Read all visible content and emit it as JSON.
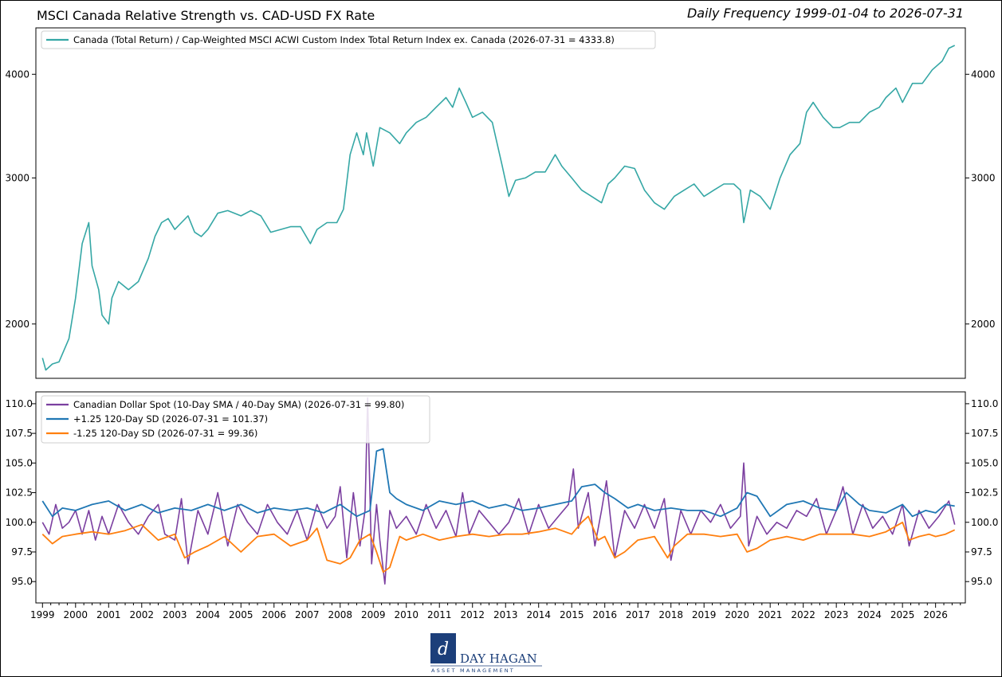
{
  "chart_data": [
    {
      "type": "line",
      "title": "MSCI Canada Relative Strength vs. CAD-USD FX Rate",
      "subtitle": "Daily Frequency 1999-01-04 to 2026-07-31",
      "y_scale": "log",
      "ylim": [
        1720,
        4550
      ],
      "yticks": [
        2000,
        3000,
        4000
      ],
      "grid": false,
      "legend_position": "top-left",
      "series": [
        {
          "name": "Canada (Total Return) / Cap-Weighted MSCI ACWI Custom Index Total Return Index ex. Canada (2026-07-31 = 4333.8)",
          "color": "#35a7a5",
          "x": [
            1999.0,
            1999.1,
            1999.3,
            1999.5,
            1999.8,
            2000.0,
            2000.2,
            2000.4,
            2000.5,
            2000.7,
            2000.8,
            2001.0,
            2001.1,
            2001.3,
            2001.6,
            2001.9,
            2002.2,
            2002.4,
            2002.6,
            2002.8,
            2003.0,
            2003.2,
            2003.4,
            2003.6,
            2003.8,
            2004.0,
            2004.3,
            2004.6,
            2005.0,
            2005.3,
            2005.6,
            2005.9,
            2006.2,
            2006.5,
            2006.8,
            2007.1,
            2007.3,
            2007.6,
            2007.9,
            2008.1,
            2008.3,
            2008.5,
            2008.7,
            2008.8,
            2009.0,
            2009.2,
            2009.5,
            2009.8,
            2010.0,
            2010.3,
            2010.6,
            2010.9,
            2011.2,
            2011.4,
            2011.6,
            2011.8,
            2012.0,
            2012.3,
            2012.6,
            2012.9,
            2013.1,
            2013.3,
            2013.6,
            2013.9,
            2014.2,
            2014.5,
            2014.7,
            2015.0,
            2015.3,
            2015.6,
            2015.9,
            2016.1,
            2016.3,
            2016.6,
            2016.9,
            2017.2,
            2017.5,
            2017.8,
            2018.1,
            2018.4,
            2018.7,
            2019.0,
            2019.3,
            2019.6,
            2019.9,
            2020.1,
            2020.2,
            2020.4,
            2020.7,
            2021.0,
            2021.3,
            2021.6,
            2021.9,
            2022.1,
            2022.3,
            2022.6,
            2022.9,
            2023.1,
            2023.4,
            2023.7,
            2024.0,
            2024.3,
            2024.5,
            2024.8,
            2025.0,
            2025.3,
            2025.6,
            2025.9,
            2026.2,
            2026.4,
            2026.58
          ],
          "values": [
            1820,
            1760,
            1790,
            1800,
            1920,
            2150,
            2500,
            2650,
            2350,
            2200,
            2050,
            2000,
            2150,
            2250,
            2200,
            2250,
            2400,
            2550,
            2650,
            2680,
            2600,
            2650,
            2700,
            2580,
            2550,
            2600,
            2720,
            2740,
            2700,
            2740,
            2700,
            2580,
            2600,
            2620,
            2620,
            2500,
            2600,
            2650,
            2650,
            2750,
            3200,
            3400,
            3200,
            3400,
            3100,
            3450,
            3400,
            3300,
            3400,
            3500,
            3550,
            3650,
            3750,
            3650,
            3850,
            3700,
            3550,
            3600,
            3500,
            3100,
            2850,
            2980,
            3000,
            3050,
            3050,
            3200,
            3100,
            3000,
            2900,
            2850,
            2800,
            2950,
            3000,
            3100,
            3080,
            2900,
            2800,
            2750,
            2850,
            2900,
            2950,
            2850,
            2900,
            2950,
            2950,
            2900,
            2650,
            2900,
            2850,
            2750,
            3000,
            3200,
            3300,
            3600,
            3700,
            3550,
            3450,
            3450,
            3500,
            3500,
            3600,
            3650,
            3750,
            3850,
            3700,
            3900,
            3900,
            4050,
            4150,
            4300,
            4333.8
          ]
        }
      ]
    },
    {
      "type": "line",
      "ylim": [
        93.2,
        111.0
      ],
      "yticks": [
        95.0,
        97.5,
        100.0,
        102.5,
        105.0,
        107.5,
        110.0
      ],
      "grid": false,
      "legend_position": "top-left",
      "xlim": [
        1998.8,
        2026.9
      ],
      "xticks": [
        1999,
        2000,
        2001,
        2002,
        2003,
        2004,
        2005,
        2006,
        2007,
        2008,
        2009,
        2010,
        2011,
        2012,
        2013,
        2014,
        2015,
        2016,
        2017,
        2018,
        2019,
        2020,
        2021,
        2022,
        2023,
        2024,
        2025,
        2026
      ],
      "series": [
        {
          "name": "Canadian Dollar Spot (10-Day SMA / 40-Day SMA) (2026-07-31 = 99.80)",
          "color": "#7b3fa0",
          "x": [
            1999.0,
            1999.2,
            1999.4,
            1999.6,
            1999.8,
            2000.0,
            2000.2,
            2000.4,
            2000.6,
            2000.8,
            2001.0,
            2001.3,
            2001.6,
            2001.9,
            2002.2,
            2002.5,
            2002.7,
            2003.0,
            2003.2,
            2003.4,
            2003.7,
            2004.0,
            2004.3,
            2004.6,
            2004.9,
            2005.2,
            2005.5,
            2005.8,
            2006.1,
            2006.4,
            2006.7,
            2007.0,
            2007.3,
            2007.6,
            2007.85,
            2008.0,
            2008.2,
            2008.4,
            2008.6,
            2008.75,
            2008.83,
            2008.95,
            2009.1,
            2009.2,
            2009.35,
            2009.5,
            2009.7,
            2010.0,
            2010.3,
            2010.6,
            2010.9,
            2011.2,
            2011.5,
            2011.7,
            2011.9,
            2012.2,
            2012.5,
            2012.8,
            2013.1,
            2013.4,
            2013.7,
            2014.0,
            2014.3,
            2014.6,
            2014.9,
            2015.05,
            2015.2,
            2015.5,
            2015.7,
            2015.9,
            2016.05,
            2016.3,
            2016.6,
            2016.9,
            2017.2,
            2017.5,
            2017.8,
            2018.0,
            2018.3,
            2018.6,
            2018.9,
            2019.2,
            2019.5,
            2019.8,
            2020.1,
            2020.2,
            2020.35,
            2020.6,
            2020.9,
            2021.2,
            2021.5,
            2021.8,
            2022.1,
            2022.4,
            2022.7,
            2023.0,
            2023.2,
            2023.5,
            2023.8,
            2024.1,
            2024.4,
            2024.7,
            2025.0,
            2025.2,
            2025.5,
            2025.8,
            2026.1,
            2026.4,
            2026.58
          ],
          "values": [
            100.0,
            99.0,
            101.5,
            99.5,
            100.0,
            101.0,
            99.0,
            101.0,
            98.5,
            100.5,
            99.0,
            101.5,
            100.0,
            99.0,
            100.5,
            101.5,
            99.0,
            98.5,
            102.0,
            96.5,
            101.0,
            99.0,
            102.5,
            98.0,
            101.5,
            100.0,
            99.0,
            101.5,
            100.0,
            99.0,
            101.0,
            98.5,
            101.5,
            99.5,
            100.5,
            103.0,
            97.0,
            102.5,
            98.0,
            101.0,
            110.5,
            96.5,
            101.5,
            98.5,
            94.8,
            101.0,
            99.5,
            100.5,
            99.0,
            101.5,
            99.5,
            101.0,
            98.8,
            102.5,
            99.0,
            101.0,
            100.0,
            99.0,
            100.0,
            102.0,
            99.0,
            101.5,
            99.5,
            100.5,
            101.5,
            104.5,
            99.5,
            102.5,
            98.0,
            101.0,
            103.5,
            97.0,
            101.0,
            99.5,
            101.5,
            99.5,
            102.0,
            96.8,
            101.0,
            99.0,
            101.0,
            100.0,
            101.5,
            99.5,
            100.5,
            105.0,
            98.0,
            100.5,
            99.0,
            100.0,
            99.5,
            101.0,
            100.5,
            102.0,
            99.0,
            101.0,
            103.0,
            99.0,
            101.5,
            99.5,
            100.5,
            99.0,
            101.5,
            98.0,
            101.0,
            99.5,
            100.5,
            101.8,
            99.8
          ]
        },
        {
          "name": "+1.25 120-Day SD (2026-07-31 = 101.37)",
          "color": "#1f77b4",
          "x": [
            1999.0,
            1999.3,
            1999.6,
            2000.0,
            2000.5,
            2001.0,
            2001.5,
            2002.0,
            2002.5,
            2003.0,
            2003.5,
            2004.0,
            2004.5,
            2005.0,
            2005.5,
            2006.0,
            2006.5,
            2007.0,
            2007.5,
            2008.0,
            2008.5,
            2008.9,
            2009.1,
            2009.3,
            2009.5,
            2009.7,
            2010.0,
            2010.5,
            2011.0,
            2011.5,
            2012.0,
            2012.5,
            2013.0,
            2013.5,
            2014.0,
            2014.5,
            2015.0,
            2015.3,
            2015.7,
            2016.0,
            2016.3,
            2016.7,
            2017.0,
            2017.5,
            2018.0,
            2018.5,
            2019.0,
            2019.5,
            2020.0,
            2020.3,
            2020.6,
            2021.0,
            2021.5,
            2022.0,
            2022.5,
            2023.0,
            2023.3,
            2023.7,
            2024.0,
            2024.5,
            2025.0,
            2025.3,
            2025.7,
            2026.0,
            2026.3,
            2026.58
          ],
          "values": [
            101.8,
            100.5,
            101.2,
            101.0,
            101.5,
            101.8,
            101.0,
            101.5,
            100.8,
            101.2,
            101.0,
            101.5,
            101.0,
            101.5,
            100.8,
            101.2,
            101.0,
            101.2,
            100.8,
            101.5,
            100.5,
            101.0,
            106.0,
            106.2,
            102.5,
            102.0,
            101.5,
            101.0,
            101.8,
            101.5,
            101.8,
            101.2,
            101.5,
            101.0,
            101.2,
            101.5,
            101.8,
            103.0,
            103.2,
            102.5,
            102.0,
            101.2,
            101.5,
            101.0,
            101.2,
            101.0,
            101.0,
            100.5,
            101.2,
            102.5,
            102.2,
            100.5,
            101.5,
            101.8,
            101.2,
            101.0,
            102.5,
            101.5,
            101.0,
            100.8,
            101.5,
            100.5,
            101.0,
            100.8,
            101.5,
            101.37
          ]
        },
        {
          "name": "-1.25 120-Day SD (2026-07-31 = 99.36)",
          "color": "#ff7f0e",
          "x": [
            1999.0,
            1999.3,
            1999.6,
            2000.0,
            2000.5,
            2001.0,
            2001.5,
            2002.0,
            2002.5,
            2003.0,
            2003.3,
            2003.6,
            2004.0,
            2004.5,
            2005.0,
            2005.5,
            2006.0,
            2006.5,
            2007.0,
            2007.3,
            2007.6,
            2008.0,
            2008.3,
            2008.6,
            2008.9,
            2009.1,
            2009.3,
            2009.5,
            2009.8,
            2010.0,
            2010.5,
            2011.0,
            2011.5,
            2012.0,
            2012.5,
            2013.0,
            2013.5,
            2014.0,
            2014.5,
            2015.0,
            2015.3,
            2015.5,
            2015.8,
            2016.0,
            2016.3,
            2016.6,
            2017.0,
            2017.5,
            2017.9,
            2018.1,
            2018.5,
            2019.0,
            2019.5,
            2020.0,
            2020.3,
            2020.6,
            2021.0,
            2021.5,
            2022.0,
            2022.5,
            2023.0,
            2023.5,
            2024.0,
            2024.5,
            2025.0,
            2025.2,
            2025.5,
            2025.8,
            2026.0,
            2026.3,
            2026.58
          ],
          "values": [
            99.0,
            98.2,
            98.8,
            99.0,
            99.2,
            99.0,
            99.3,
            99.8,
            98.5,
            99.0,
            97.0,
            97.5,
            98.0,
            98.8,
            97.5,
            98.8,
            99.0,
            98.0,
            98.5,
            99.5,
            96.8,
            96.5,
            97.0,
            98.5,
            99.0,
            97.5,
            95.8,
            96.2,
            98.8,
            98.5,
            99.0,
            98.5,
            98.8,
            99.0,
            98.8,
            99.0,
            99.0,
            99.2,
            99.5,
            99.0,
            100.0,
            100.5,
            98.5,
            98.8,
            97.0,
            97.5,
            98.5,
            98.8,
            97.0,
            98.0,
            99.0,
            99.0,
            98.8,
            99.0,
            97.5,
            97.8,
            98.5,
            98.8,
            98.5,
            99.0,
            99.0,
            99.0,
            98.8,
            99.2,
            100.0,
            98.5,
            98.8,
            99.0,
            98.8,
            99.0,
            99.36
          ]
        }
      ]
    }
  ],
  "logo": {
    "name": "DAY HAGAN",
    "tagline": "ASSET MANAGEMENT"
  }
}
